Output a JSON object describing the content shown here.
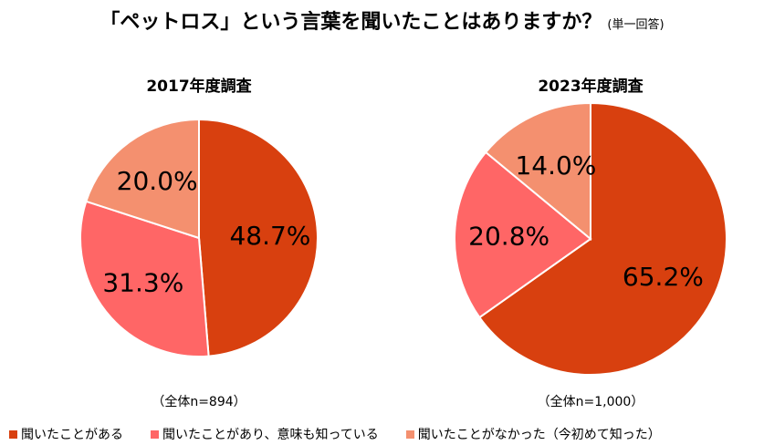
{
  "title": "「ペットロス」という言葉を聞いたことはありますか？",
  "title_note": "(単一回答)",
  "colors": [
    "#D8400F",
    "#FF6666",
    "#F4906F"
  ],
  "chart_data": [
    {
      "type": "pie",
      "title": "2017年度調査",
      "n_label": "（全体n=894）",
      "categories": [
        "聞いたことがある",
        "聞いたことがあり、意味も知っている",
        "聞いたことがなかった（今初めて知った）"
      ],
      "values": [
        48.7,
        31.3,
        20.0
      ],
      "labels": [
        "48.7%",
        "31.3%",
        "20.0%"
      ]
    },
    {
      "type": "pie",
      "title": "2023年度調査",
      "n_label": "（全体n=1,000）",
      "categories": [
        "聞いたことがある",
        "聞いたことがあり、意味も知っている",
        "聞いたことがなかった（今初めて知った）"
      ],
      "values": [
        65.2,
        20.8,
        14.0
      ],
      "labels": [
        "65.2%",
        "20.8%",
        "14.0%"
      ]
    }
  ],
  "legend": [
    "聞いたことがある",
    "聞いたことがあり、意味も知っている",
    "聞いたことがなかった（今初めて知った）"
  ]
}
